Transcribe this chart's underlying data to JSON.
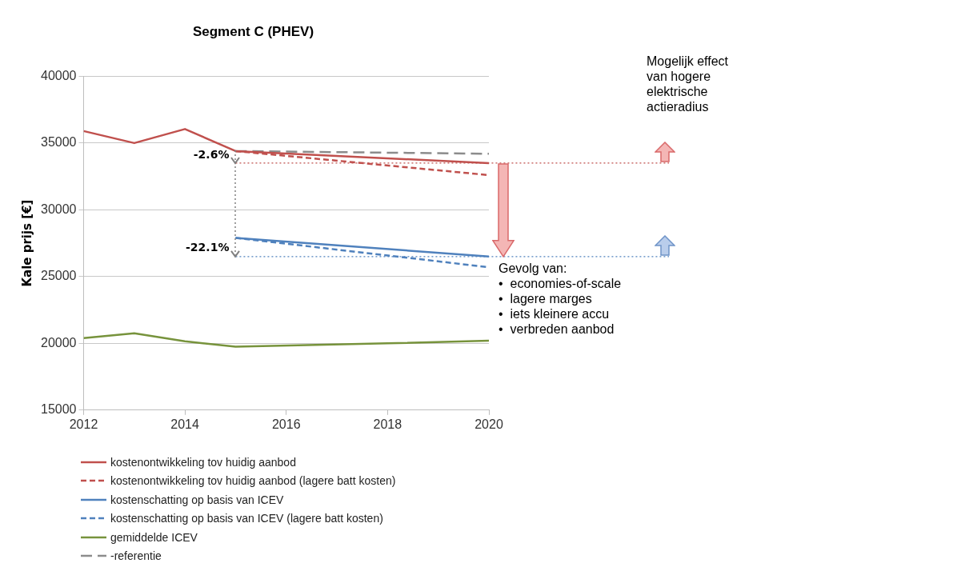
{
  "chart_data": {
    "type": "line",
    "title": "Segment C (PHEV)",
    "ylabel": "Kale prijs [€]",
    "xlim": [
      2012,
      2020
    ],
    "xticks": [
      2012,
      2014,
      2016,
      2018,
      2020
    ],
    "ylim": [
      15000,
      40000
    ],
    "yticks": [
      15000,
      20000,
      25000,
      30000,
      35000,
      40000
    ],
    "grid": "y",
    "legend": "bottom",
    "marker": "none",
    "series": [
      {
        "name": "kostenontwikkeling tov huidig aanbod",
        "color": "#c0504d",
        "line_style": "solid",
        "x": [
          2012,
          2013,
          2014,
          2015,
          2020
        ],
        "values": [
          35900,
          35000,
          36050,
          34400,
          33500
        ]
      },
      {
        "name": "kostenontwikkeling tov huidig aanbod (lagere batt kosten)",
        "color": "#c0504d",
        "line_style": "dashed",
        "x": [
          2015,
          2020
        ],
        "values": [
          34400,
          32600
        ]
      },
      {
        "name": "kostenschatting op basis van ICEV",
        "color": "#4f81bd",
        "line_style": "solid",
        "x": [
          2015,
          2020
        ],
        "values": [
          27900,
          26500
        ]
      },
      {
        "name": "kostenschatting op basis van ICEV (lagere batt kosten)",
        "color": "#4f81bd",
        "line_style": "dashed",
        "x": [
          2015,
          2020
        ],
        "values": [
          27900,
          25700
        ]
      },
      {
        "name": "gemiddelde ICEV",
        "color": "#77933c",
        "line_style": "solid",
        "x": [
          2012,
          2013,
          2014,
          2015,
          2018,
          2020
        ],
        "values": [
          20400,
          20750,
          20150,
          19750,
          20000,
          20200
        ]
      },
      {
        "name": "-referentie",
        "color": "#8c8c8c",
        "line_style": "dashed",
        "x": [
          2015,
          2020
        ],
        "values": [
          34400,
          34200
        ]
      }
    ],
    "ref_lines": [
      {
        "axis": "y",
        "value": 33500,
        "color": "#c0504d",
        "line_style": "dotted"
      },
      {
        "axis": "y",
        "value": 26500,
        "color": "#4f81bd",
        "line_style": "dotted"
      }
    ],
    "annotations": [
      {
        "text": "-2.6%",
        "x": 2015,
        "y": 33500
      },
      {
        "text": "-22.1%",
        "x": 2015,
        "y": 26500
      },
      "Mogelijk effect\nvan hogere\nelektrische\nactieradius",
      "Gevolg van:\n•  economies-of-scale\n•  lagere marges\n•  iets kleinere accu\n•  verbreden aanbod"
    ]
  }
}
